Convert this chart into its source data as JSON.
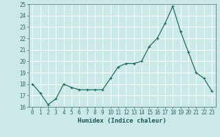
{
  "x": [
    0,
    1,
    2,
    3,
    4,
    5,
    6,
    7,
    8,
    9,
    10,
    11,
    12,
    13,
    14,
    15,
    16,
    17,
    18,
    19,
    20,
    21,
    22,
    23
  ],
  "y": [
    18,
    17.2,
    16.2,
    16.7,
    18,
    17.7,
    17.5,
    17.5,
    17.5,
    17.5,
    18.5,
    19.5,
    19.8,
    19.8,
    20.0,
    21.3,
    22.0,
    23.3,
    24.8,
    22.6,
    20.8,
    19.0,
    18.5,
    17.4
  ],
  "xlabel": "Humidex (Indice chaleur)",
  "ylabel": "",
  "xlim": [
    -0.5,
    23.5
  ],
  "ylim": [
    16,
    25
  ],
  "yticks": [
    16,
    17,
    18,
    19,
    20,
    21,
    22,
    23,
    24,
    25
  ],
  "xticks": [
    0,
    1,
    2,
    3,
    4,
    5,
    6,
    7,
    8,
    9,
    10,
    11,
    12,
    13,
    14,
    15,
    16,
    17,
    18,
    19,
    20,
    21,
    22,
    23
  ],
  "line_color": "#1a6b5a",
  "marker_color": "#1a6b5a",
  "bg_color": "#cce9e9",
  "grid_color": "#ffffff",
  "spine_color": "#336666",
  "tick_color": "#336666",
  "label_color": "#1a5555"
}
